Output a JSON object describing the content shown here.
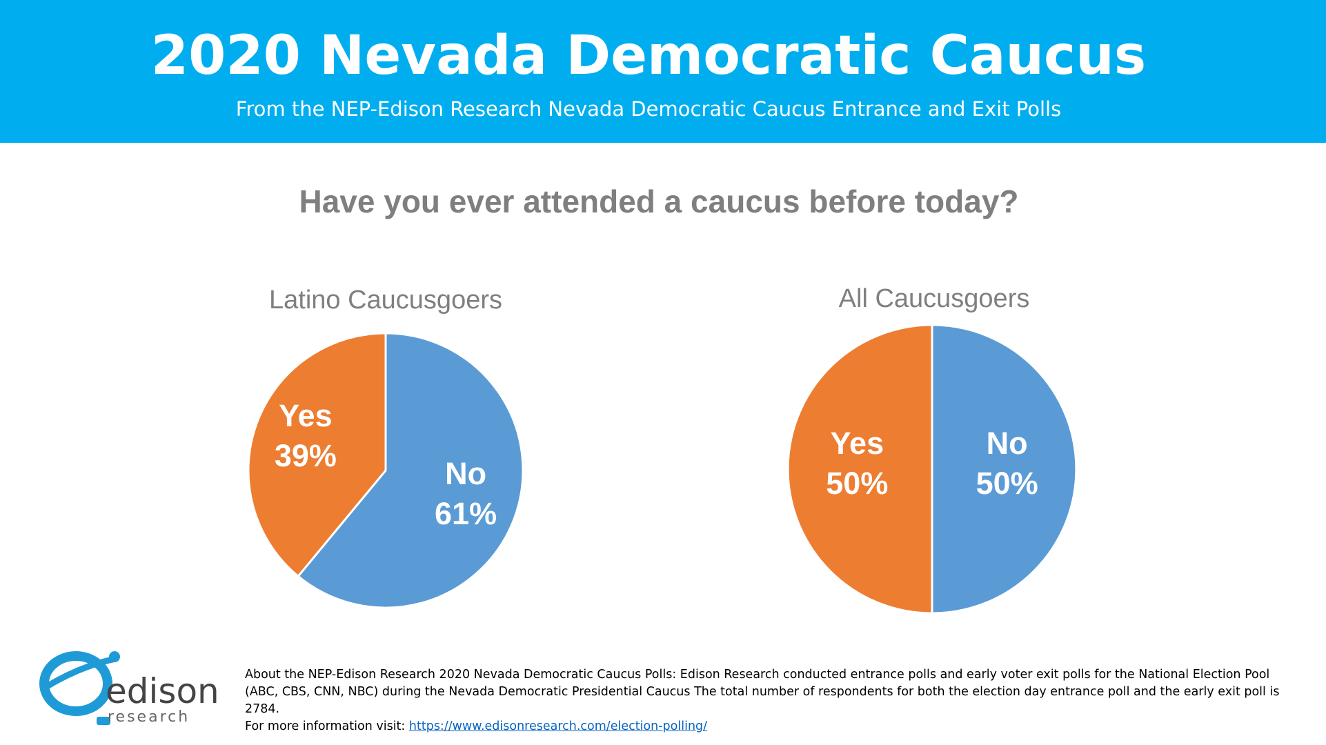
{
  "header": {
    "title": "2020 Nevada Democratic Caucus",
    "subtitle": "From the NEP-Edison Research Nevada Democratic Caucus Entrance and Exit Polls"
  },
  "question": "Have you ever attended a caucus before today?",
  "chart_data": [
    {
      "type": "pie",
      "title": "Latino Caucusgoers",
      "slices": [
        {
          "label": "No",
          "value": 61,
          "value_label": "61%",
          "color": "#5b9bd5"
        },
        {
          "label": "Yes",
          "value": 39,
          "value_label": "39%",
          "color": "#ed7d31"
        }
      ]
    },
    {
      "type": "pie",
      "title": "All Caucusgoers",
      "slices": [
        {
          "label": "No",
          "value": 50,
          "value_label": "50%",
          "color": "#5b9bd5"
        },
        {
          "label": "Yes",
          "value": 50,
          "value_label": "50%",
          "color": "#ed7d31"
        }
      ]
    }
  ],
  "logo": {
    "word": "edison",
    "sub": "research",
    "color": "#1e9bd7"
  },
  "about": {
    "line1": "About the NEP-Edison Research 2020 Nevada Democratic Caucus Polls: Edison Research conducted entrance polls and early voter exit polls for the National Election Pool",
    "line2": "(ABC, CBS, CNN, NBC) during the Nevada Democratic Presidential Caucus  The total number of respondents for both the election day entrance poll and the early exit poll is 2784.",
    "line3_prefix": "For more information visit: ",
    "link": "https://www.edisonresearch.com/election-polling/"
  },
  "colors": {
    "header_bg": "#00aeef",
    "title_gray": "#7f7f7f",
    "no": "#5b9bd5",
    "yes": "#ed7d31"
  }
}
